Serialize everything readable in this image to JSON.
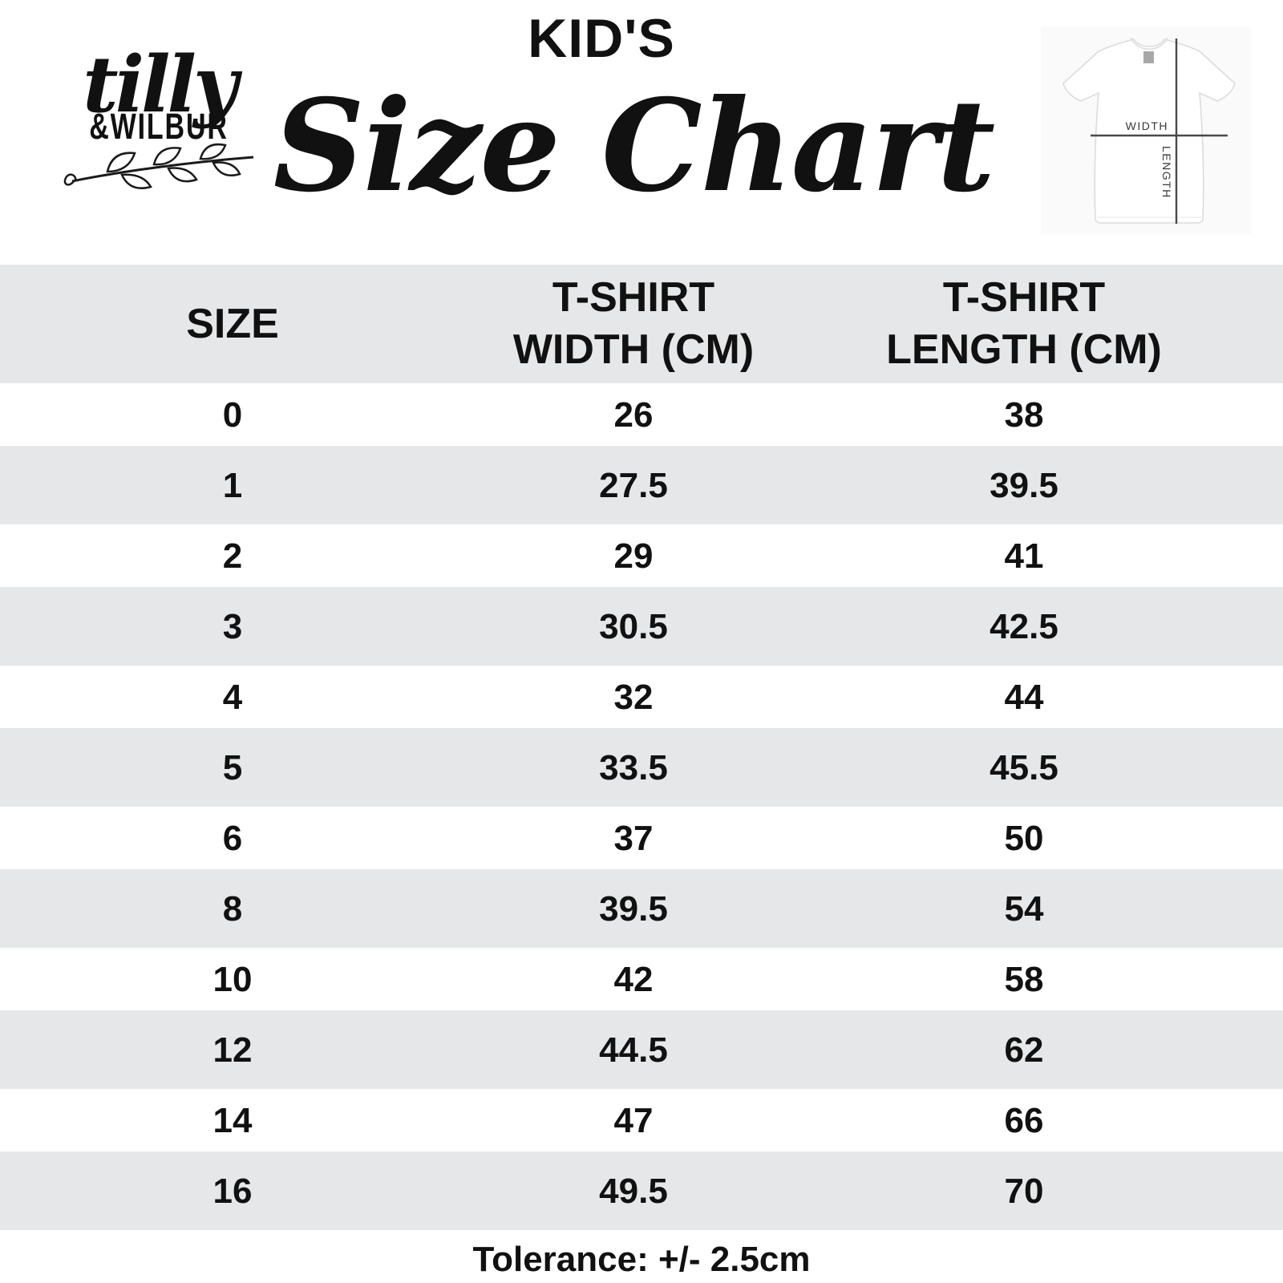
{
  "brand": {
    "script_name": "tilly",
    "caps_name": "&WILBUR"
  },
  "title": {
    "kicker": "KID'S",
    "main": "Size Chart"
  },
  "diagram": {
    "width_label": "WIDTH",
    "length_label": "LENGTH"
  },
  "table_display": {
    "headers": [
      "SIZE",
      "T-SHIRT\nWIDTH (CM)",
      "T-SHIRT\nLENGTH (CM)"
    ]
  },
  "chart_data": {
    "type": "table",
    "title": "KID'S Size Chart",
    "columns": [
      "SIZE",
      "T-SHIRT WIDTH (CM)",
      "T-SHIRT LENGTH (CM)"
    ],
    "rows": [
      [
        0,
        26,
        38
      ],
      [
        1,
        27.5,
        39.5
      ],
      [
        2,
        29,
        41
      ],
      [
        3,
        30.5,
        42.5
      ],
      [
        4,
        32,
        44
      ],
      [
        5,
        33.5,
        45.5
      ],
      [
        6,
        37,
        50
      ],
      [
        8,
        39.5,
        54
      ],
      [
        10,
        42,
        58
      ],
      [
        12,
        44.5,
        62
      ],
      [
        14,
        47,
        66
      ],
      [
        16,
        49.5,
        70
      ]
    ],
    "footnote": "Tolerance: +/- 2.5cm"
  },
  "colors": {
    "background": "#ffffff",
    "text": "#111111",
    "row_stripe": "#e6e7e8",
    "header_stripe": "#e6e7e8",
    "photo_background": "#fafafa",
    "diagram_line": "#4a4a4a",
    "diagram_label": "#3a3a3a",
    "shirt_outline": "#dcdcdc"
  }
}
